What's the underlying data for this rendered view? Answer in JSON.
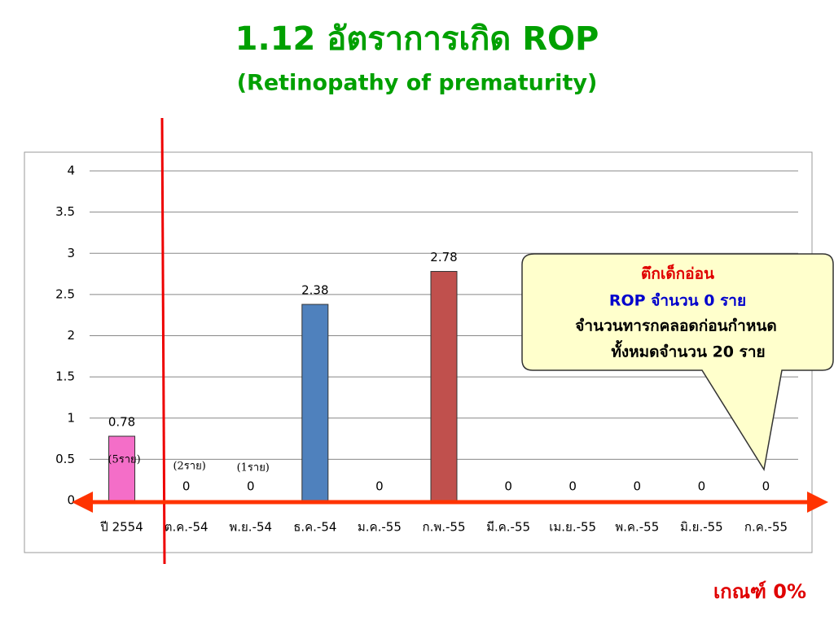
{
  "title": "1.12 อัตราการเกิด  ROP",
  "subtitle": "(Retinopathy of prematurity)",
  "chart_data": {
    "type": "bar",
    "categories": [
      "ปี 2554",
      "ต.ค.-54",
      "พ.ย.-54",
      "ธ.ค.-54",
      "ม.ค.-55",
      "ก.พ.-55",
      "มี.ค.-55",
      "เม.ย.-55",
      "พ.ค.-55",
      "มิ.ย.-55",
      "ก.ค.-55"
    ],
    "values": [
      0.78,
      0,
      0,
      2.38,
      0,
      2.78,
      0,
      0,
      0,
      0,
      0
    ],
    "colors": [
      "#f46ec8",
      "#4f81bd",
      "#4f81bd",
      "#4f81bd",
      "#4f81bd",
      "#c0504d",
      "#4f81bd",
      "#4f81bd",
      "#4f81bd",
      "#4f81bd",
      "#4f81bd"
    ],
    "case_labels": [
      "(5ราย)",
      "(2ราย)",
      "(1ราย)",
      null,
      null,
      null,
      null,
      null,
      null,
      null,
      null
    ],
    "ylim": [
      0,
      4
    ],
    "yticks": [
      0,
      0.5,
      1,
      1.5,
      2,
      2.5,
      3,
      3.5,
      4
    ],
    "grid": true
  },
  "callout": {
    "lines": [
      "ตึกเด็กอ่อน",
      "ROP จำนวน 0 ราย",
      "จำนวนทารกคลอดก่อนกำหนด",
      "ทั้งหมดจำนวน 20 ราย"
    ]
  },
  "criterion": "เกณฑ์ 0%"
}
